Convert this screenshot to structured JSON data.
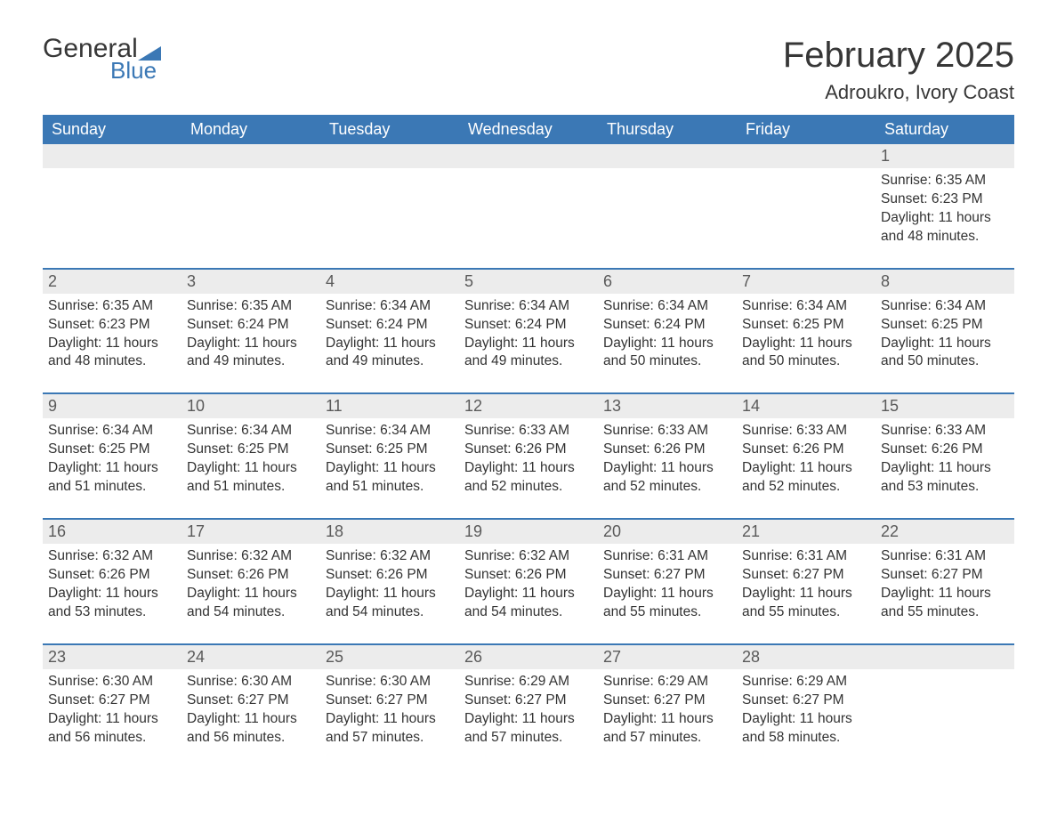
{
  "logo": {
    "text1": "General",
    "text2": "Blue"
  },
  "title": "February 2025",
  "location": "Adroukro, Ivory Coast",
  "colors": {
    "header_bg": "#3b78b5",
    "header_text": "#ffffff",
    "daynum_bg": "#ececec",
    "week_border": "#3b78b5",
    "body_text": "#333333",
    "logo_blue": "#3b78b5",
    "background": "#ffffff"
  },
  "typography": {
    "title_fontsize": 40,
    "location_fontsize": 22,
    "dayheader_fontsize": 18,
    "daynum_fontsize": 18,
    "cell_fontsize": 15.5
  },
  "day_labels": [
    "Sunday",
    "Monday",
    "Tuesday",
    "Wednesday",
    "Thursday",
    "Friday",
    "Saturday"
  ],
  "weeks": [
    {
      "days": [
        null,
        null,
        null,
        null,
        null,
        null,
        {
          "n": "1",
          "sunrise": "Sunrise: 6:35 AM",
          "sunset": "Sunset: 6:23 PM",
          "dl1": "Daylight: 11 hours",
          "dl2": "and 48 minutes."
        }
      ]
    },
    {
      "days": [
        {
          "n": "2",
          "sunrise": "Sunrise: 6:35 AM",
          "sunset": "Sunset: 6:23 PM",
          "dl1": "Daylight: 11 hours",
          "dl2": "and 48 minutes."
        },
        {
          "n": "3",
          "sunrise": "Sunrise: 6:35 AM",
          "sunset": "Sunset: 6:24 PM",
          "dl1": "Daylight: 11 hours",
          "dl2": "and 49 minutes."
        },
        {
          "n": "4",
          "sunrise": "Sunrise: 6:34 AM",
          "sunset": "Sunset: 6:24 PM",
          "dl1": "Daylight: 11 hours",
          "dl2": "and 49 minutes."
        },
        {
          "n": "5",
          "sunrise": "Sunrise: 6:34 AM",
          "sunset": "Sunset: 6:24 PM",
          "dl1": "Daylight: 11 hours",
          "dl2": "and 49 minutes."
        },
        {
          "n": "6",
          "sunrise": "Sunrise: 6:34 AM",
          "sunset": "Sunset: 6:24 PM",
          "dl1": "Daylight: 11 hours",
          "dl2": "and 50 minutes."
        },
        {
          "n": "7",
          "sunrise": "Sunrise: 6:34 AM",
          "sunset": "Sunset: 6:25 PM",
          "dl1": "Daylight: 11 hours",
          "dl2": "and 50 minutes."
        },
        {
          "n": "8",
          "sunrise": "Sunrise: 6:34 AM",
          "sunset": "Sunset: 6:25 PM",
          "dl1": "Daylight: 11 hours",
          "dl2": "and 50 minutes."
        }
      ]
    },
    {
      "days": [
        {
          "n": "9",
          "sunrise": "Sunrise: 6:34 AM",
          "sunset": "Sunset: 6:25 PM",
          "dl1": "Daylight: 11 hours",
          "dl2": "and 51 minutes."
        },
        {
          "n": "10",
          "sunrise": "Sunrise: 6:34 AM",
          "sunset": "Sunset: 6:25 PM",
          "dl1": "Daylight: 11 hours",
          "dl2": "and 51 minutes."
        },
        {
          "n": "11",
          "sunrise": "Sunrise: 6:34 AM",
          "sunset": "Sunset: 6:25 PM",
          "dl1": "Daylight: 11 hours",
          "dl2": "and 51 minutes."
        },
        {
          "n": "12",
          "sunrise": "Sunrise: 6:33 AM",
          "sunset": "Sunset: 6:26 PM",
          "dl1": "Daylight: 11 hours",
          "dl2": "and 52 minutes."
        },
        {
          "n": "13",
          "sunrise": "Sunrise: 6:33 AM",
          "sunset": "Sunset: 6:26 PM",
          "dl1": "Daylight: 11 hours",
          "dl2": "and 52 minutes."
        },
        {
          "n": "14",
          "sunrise": "Sunrise: 6:33 AM",
          "sunset": "Sunset: 6:26 PM",
          "dl1": "Daylight: 11 hours",
          "dl2": "and 52 minutes."
        },
        {
          "n": "15",
          "sunrise": "Sunrise: 6:33 AM",
          "sunset": "Sunset: 6:26 PM",
          "dl1": "Daylight: 11 hours",
          "dl2": "and 53 minutes."
        }
      ]
    },
    {
      "days": [
        {
          "n": "16",
          "sunrise": "Sunrise: 6:32 AM",
          "sunset": "Sunset: 6:26 PM",
          "dl1": "Daylight: 11 hours",
          "dl2": "and 53 minutes."
        },
        {
          "n": "17",
          "sunrise": "Sunrise: 6:32 AM",
          "sunset": "Sunset: 6:26 PM",
          "dl1": "Daylight: 11 hours",
          "dl2": "and 54 minutes."
        },
        {
          "n": "18",
          "sunrise": "Sunrise: 6:32 AM",
          "sunset": "Sunset: 6:26 PM",
          "dl1": "Daylight: 11 hours",
          "dl2": "and 54 minutes."
        },
        {
          "n": "19",
          "sunrise": "Sunrise: 6:32 AM",
          "sunset": "Sunset: 6:26 PM",
          "dl1": "Daylight: 11 hours",
          "dl2": "and 54 minutes."
        },
        {
          "n": "20",
          "sunrise": "Sunrise: 6:31 AM",
          "sunset": "Sunset: 6:27 PM",
          "dl1": "Daylight: 11 hours",
          "dl2": "and 55 minutes."
        },
        {
          "n": "21",
          "sunrise": "Sunrise: 6:31 AM",
          "sunset": "Sunset: 6:27 PM",
          "dl1": "Daylight: 11 hours",
          "dl2": "and 55 minutes."
        },
        {
          "n": "22",
          "sunrise": "Sunrise: 6:31 AM",
          "sunset": "Sunset: 6:27 PM",
          "dl1": "Daylight: 11 hours",
          "dl2": "and 55 minutes."
        }
      ]
    },
    {
      "days": [
        {
          "n": "23",
          "sunrise": "Sunrise: 6:30 AM",
          "sunset": "Sunset: 6:27 PM",
          "dl1": "Daylight: 11 hours",
          "dl2": "and 56 minutes."
        },
        {
          "n": "24",
          "sunrise": "Sunrise: 6:30 AM",
          "sunset": "Sunset: 6:27 PM",
          "dl1": "Daylight: 11 hours",
          "dl2": "and 56 minutes."
        },
        {
          "n": "25",
          "sunrise": "Sunrise: 6:30 AM",
          "sunset": "Sunset: 6:27 PM",
          "dl1": "Daylight: 11 hours",
          "dl2": "and 57 minutes."
        },
        {
          "n": "26",
          "sunrise": "Sunrise: 6:29 AM",
          "sunset": "Sunset: 6:27 PM",
          "dl1": "Daylight: 11 hours",
          "dl2": "and 57 minutes."
        },
        {
          "n": "27",
          "sunrise": "Sunrise: 6:29 AM",
          "sunset": "Sunset: 6:27 PM",
          "dl1": "Daylight: 11 hours",
          "dl2": "and 57 minutes."
        },
        {
          "n": "28",
          "sunrise": "Sunrise: 6:29 AM",
          "sunset": "Sunset: 6:27 PM",
          "dl1": "Daylight: 11 hours",
          "dl2": "and 58 minutes."
        },
        null
      ]
    }
  ]
}
